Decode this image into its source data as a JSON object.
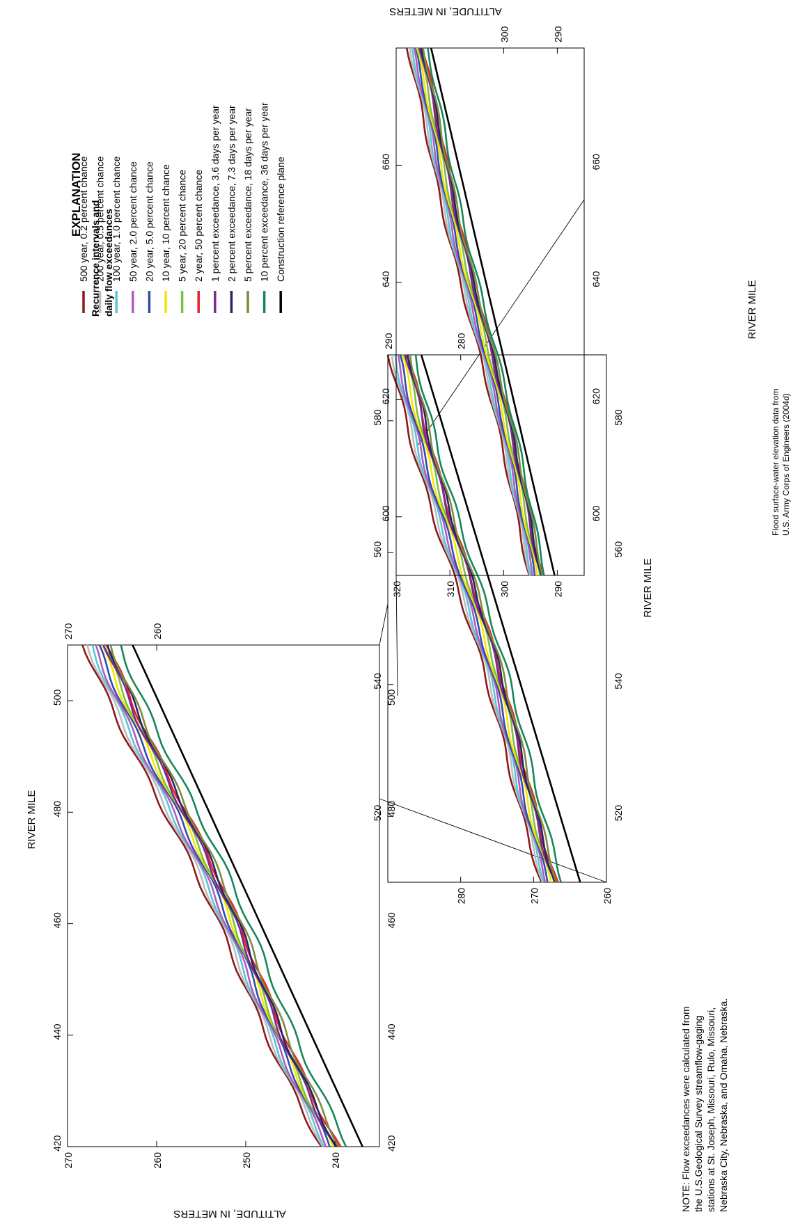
{
  "figure": {
    "explanation_title": "EXPLANATION",
    "legend_heading_1": "Recurrence intervals and",
    "legend_heading_2": "daily flow exceedances",
    "note_lines": [
      "NOTE:  Flow exceedances were calculated from",
      "the U.S.Geological Survey streamflow-gaging",
      "stations at St. Joseph, Missouri, Rulo, Missouri,",
      "Nebraska City, Nebraska, and Omaha, Nebraska."
    ],
    "source_lines": [
      "Flood surface-water elevation data from",
      "U.S. Army Corps of Engineers (2004d)"
    ]
  },
  "chart_data": [
    {
      "type": "line",
      "panel": "river miles 420-510",
      "xlabel": "RIVER MILE",
      "ylabel": "ALTITUDE, IN METERS",
      "xlim": [
        420,
        510
      ],
      "ylim": [
        235,
        270
      ],
      "xticks": [
        "420",
        "440",
        "460",
        "480",
        "500"
      ],
      "yticks": [
        "240",
        "250",
        "260",
        "270"
      ],
      "right_ticks": [
        "260",
        "270"
      ],
      "grid": false,
      "series": [
        {
          "name": "500 year, 0.2 percent chance",
          "y0": 241.5,
          "y1": 268.0
        },
        {
          "name": "200 year, 0.5 percent chance",
          "y0": 241.2,
          "y1": 267.6
        },
        {
          "name": "100 year, 1.0 percent chance",
          "y0": 241.0,
          "y1": 267.2
        },
        {
          "name": "50 year, 2.0 percent chance",
          "y0": 240.8,
          "y1": 266.9
        },
        {
          "name": "20 year, 5.0 percent chance",
          "y0": 240.5,
          "y1": 266.5
        },
        {
          "name": "10 year, 10 percent chance",
          "y0": 240.3,
          "y1": 266.1
        },
        {
          "name": "5 year, 20 percent chance",
          "y0": 240.2,
          "y1": 265.8
        },
        {
          "name": "2 year, 50 percent chance",
          "y0": 239.6,
          "y1": 265.3
        },
        {
          "name": "1 percent exceedance, 3.6 days per year",
          "y0": 240.0,
          "y1": 265.6
        },
        {
          "name": "2 percent exceedance, 7.3 days per year",
          "y0": 239.8,
          "y1": 265.2
        },
        {
          "name": "5 percent exceedance, 18 days per year",
          "y0": 239.4,
          "y1": 265.0
        },
        {
          "name": "10 percent exceedance, 36 days per year",
          "y0": 238.5,
          "y1": 264.0
        },
        {
          "name": "Construction reference plane",
          "y0": 236.9,
          "y1": 262.7
        }
      ]
    },
    {
      "type": "line",
      "panel": "river miles 510-590",
      "xlabel": "RIVER MILE",
      "ylabel": "",
      "xlim": [
        510,
        590
      ],
      "ylim": [
        260,
        290
      ],
      "xticks": [
        "520",
        "540",
        "560",
        "580"
      ],
      "yticks": [
        "260",
        "270",
        "280"
      ],
      "right_ticks": [
        "280",
        "290"
      ],
      "grid": false,
      "series": [
        {
          "name": "500 year, 0.2 percent chance",
          "y0": 268.6,
          "y1": 290.0
        },
        {
          "name": "200 year, 0.5 percent chance",
          "y0": 268.3,
          "y1": 289.6
        },
        {
          "name": "100 year, 1.0 percent chance",
          "y0": 268.1,
          "y1": 289.3
        },
        {
          "name": "50 year, 2.0 percent chance",
          "y0": 267.9,
          "y1": 289.0
        },
        {
          "name": "20 year, 5.0 percent chance",
          "y0": 267.7,
          "y1": 288.7
        },
        {
          "name": "10 year, 10 percent chance",
          "y0": 267.4,
          "y1": 288.3
        },
        {
          "name": "5 year, 20 percent chance",
          "y0": 267.1,
          "y1": 287.9
        },
        {
          "name": "2 year, 50 percent chance",
          "y0": 266.6,
          "y1": 287.4
        },
        {
          "name": "1 percent exceedance, 3.6 days per year",
          "y0": 266.9,
          "y1": 287.6
        },
        {
          "name": "2 percent exceedance, 7.3 days per year",
          "y0": 266.7,
          "y1": 287.3
        },
        {
          "name": "5 percent exceedance, 18 days per year",
          "y0": 266.4,
          "y1": 287.1
        },
        {
          "name": "10 percent exceedance, 36 days per year",
          "y0": 265.7,
          "y1": 286.5
        },
        {
          "name": "Construction reference plane",
          "y0": 263.6,
          "y1": 285.4
        }
      ]
    },
    {
      "type": "line",
      "panel": "river miles 590-680",
      "xlabel": "RIVER MILE",
      "ylabel": "ALTITUDE, IN METERS",
      "xlim": [
        590,
        680
      ],
      "ylim": [
        285,
        320
      ],
      "xticks": [
        "600",
        "620",
        "640",
        "660"
      ],
      "yticks": [
        "290",
        "300",
        "310",
        "320"
      ],
      "left_ticks": [
        "290",
        "300"
      ],
      "grid": false,
      "series": [
        {
          "name": "500 year, 0.2 percent chance",
          "y0": 294.9,
          "y1": 318.2
        },
        {
          "name": "200 year, 0.5 percent chance",
          "y0": 294.6,
          "y1": 317.8
        },
        {
          "name": "100 year, 1.0 percent chance",
          "y0": 294.4,
          "y1": 317.5
        },
        {
          "name": "50 year, 2.0 percent chance",
          "y0": 294.1,
          "y1": 317.2
        },
        {
          "name": "20 year, 5.0 percent chance",
          "y0": 293.8,
          "y1": 316.9
        },
        {
          "name": "10 year, 10 percent chance",
          "y0": 293.5,
          "y1": 316.6
        },
        {
          "name": "5 year, 20 percent chance",
          "y0": 293.1,
          "y1": 316.2
        },
        {
          "name": "2 year, 50 percent chance",
          "y0": 292.6,
          "y1": 315.4
        },
        {
          "name": "1 percent exceedance, 3.6 days per year",
          "y0": 292.8,
          "y1": 315.8
        },
        {
          "name": "2 percent exceedance, 7.3 days per year",
          "y0": 292.6,
          "y1": 315.5
        },
        {
          "name": "5 percent exceedance, 18 days per year",
          "y0": 292.3,
          "y1": 315.3
        },
        {
          "name": "10 percent exceedance, 36 days per year",
          "y0": 291.9,
          "y1": 314.6
        },
        {
          "name": "Construction reference plane",
          "y0": 290.5,
          "y1": 313.5
        }
      ]
    }
  ],
  "legend": [
    {
      "label": "500 year, 0.2 percent chance",
      "color": "#8b1a1a"
    },
    {
      "label": "200 year, 0.5 percent chance",
      "color": "#bdbdbd"
    },
    {
      "label": "100 year, 1.0 percent chance",
      "color": "#5bc5d8"
    },
    {
      "label": "50 year, 2.0 percent chance",
      "color": "#b05cbf"
    },
    {
      "label": "20 year, 5.0 percent chance",
      "color": "#2e4fa8"
    },
    {
      "label": "10 year, 10 percent chance",
      "color": "#f3e600"
    },
    {
      "label": "5 year, 20 percent chance",
      "color": "#7bc043"
    },
    {
      "label": "2 year, 50 percent chance",
      "color": "#e8212b"
    },
    {
      "label": "1 percent exceedance, 3.6 days per year",
      "color": "#7a2a8c"
    },
    {
      "label": "2 percent exceedance, 7.3 days per year",
      "color": "#23246b"
    },
    {
      "label": "5 percent exceedance, 18 days per year",
      "color": "#7d8c3a"
    },
    {
      "label": "10 percent exceedance, 36 days per year",
      "color": "#15875a"
    },
    {
      "label": "Construction reference plane",
      "color": "#000000"
    }
  ]
}
